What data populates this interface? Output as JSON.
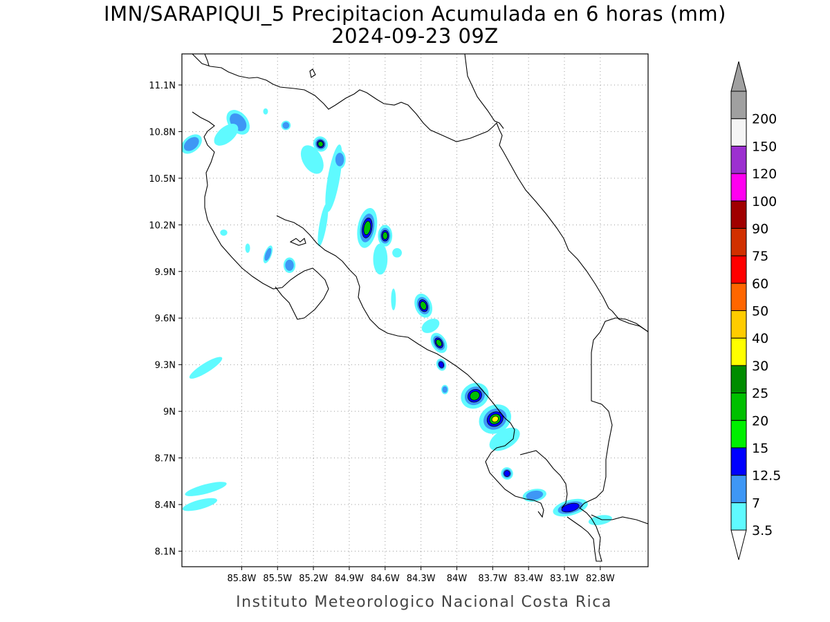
{
  "header": {
    "title_line1": "IMN/SARAPIQUI_5 Precipitacion Acumulada en 6 horas (mm)",
    "title_line2": "2024-09-23 09Z"
  },
  "footer": {
    "credit": "Instituto Meteorologico Nacional Costa Rica"
  },
  "map": {
    "lon_range": [
      -86.3,
      -82.4
    ],
    "lat_range": [
      8.0,
      11.3
    ],
    "lat_ticks": [
      {
        "value": 8.1,
        "label": "8.1N"
      },
      {
        "value": 8.4,
        "label": "8.4N"
      },
      {
        "value": 8.7,
        "label": "8.7N"
      },
      {
        "value": 9.0,
        "label": "9N"
      },
      {
        "value": 9.3,
        "label": "9.3N"
      },
      {
        "value": 9.6,
        "label": "9.6N"
      },
      {
        "value": 9.9,
        "label": "9.9N"
      },
      {
        "value": 10.2,
        "label": "10.2N"
      },
      {
        "value": 10.5,
        "label": "10.5N"
      },
      {
        "value": 10.8,
        "label": "10.8N"
      },
      {
        "value": 11.1,
        "label": "11.1N"
      }
    ],
    "lon_ticks": [
      {
        "value": -85.8,
        "label": "85.8W"
      },
      {
        "value": -85.5,
        "label": "85.5W"
      },
      {
        "value": -85.2,
        "label": "85.2W"
      },
      {
        "value": -84.9,
        "label": "84.9W"
      },
      {
        "value": -84.6,
        "label": "84.6W"
      },
      {
        "value": -84.3,
        "label": "84.3W"
      },
      {
        "value": -84.0,
        "label": "84W"
      },
      {
        "value": -83.7,
        "label": "83.7W"
      },
      {
        "value": -83.4,
        "label": "83.4W"
      },
      {
        "value": -83.1,
        "label": "83.1W"
      },
      {
        "value": -82.8,
        "label": "82.8W"
      }
    ],
    "gridlines": true
  },
  "legend": {
    "colors": [
      {
        "label": "3.5",
        "color": "#5ffaff"
      },
      {
        "label": "7",
        "color": "#3e97f5"
      },
      {
        "label": "12.5",
        "color": "#0000ff"
      },
      {
        "label": "15",
        "color": "#00f000"
      },
      {
        "label": "20",
        "color": "#00c000"
      },
      {
        "label": "25",
        "color": "#008c00"
      },
      {
        "label": "30",
        "color": "#ffff00"
      },
      {
        "label": "40",
        "color": "#ffcc00"
      },
      {
        "label": "50",
        "color": "#ff6600"
      },
      {
        "label": "60",
        "color": "#ff0000"
      },
      {
        "label": "75",
        "color": "#d13000"
      },
      {
        "label": "90",
        "color": "#a00000"
      },
      {
        "label": "100",
        "color": "#ff00f0"
      },
      {
        "label": "120",
        "color": "#9c30d0"
      },
      {
        "label": "150",
        "color": "#f5f5f5"
      },
      {
        "label": "200",
        "color": "#a0a0a0"
      }
    ]
  },
  "precip_cells": [
    {
      "lon": -85.83,
      "lat": 10.86,
      "rx": 0.08,
      "ry": 0.09,
      "rot": -40,
      "levels": 2
    },
    {
      "lon": -86.22,
      "lat": 10.72,
      "rx": 0.1,
      "ry": 0.05,
      "rot": -40,
      "levels": 2
    },
    {
      "lon": -85.93,
      "lat": 10.78,
      "rx": 0.12,
      "ry": 0.05,
      "rot": -40,
      "levels": 1
    },
    {
      "lon": -85.6,
      "lat": 10.93,
      "rx": 0.02,
      "ry": 0.02,
      "rot": 0,
      "levels": 1
    },
    {
      "lon": -85.43,
      "lat": 10.84,
      "rx": 0.04,
      "ry": 0.03,
      "rot": -20,
      "levels": 2
    },
    {
      "lon": -85.21,
      "lat": 10.62,
      "rx": 0.08,
      "ry": 0.1,
      "rot": -30,
      "levels": 1
    },
    {
      "lon": -85.14,
      "lat": 10.72,
      "rx": 0.06,
      "ry": 0.05,
      "rot": -30,
      "levels": 4
    },
    {
      "lon": -85.03,
      "lat": 10.5,
      "rx": 0.05,
      "ry": 0.22,
      "rot": 10,
      "levels": 1
    },
    {
      "lon": -84.98,
      "lat": 10.62,
      "rx": 0.05,
      "ry": 0.06,
      "rot": 0,
      "levels": 2
    },
    {
      "lon": -85.12,
      "lat": 10.2,
      "rx": 0.03,
      "ry": 0.14,
      "rot": 10,
      "levels": 1
    },
    {
      "lon": -85.58,
      "lat": 10.01,
      "rx": 0.03,
      "ry": 0.06,
      "rot": 20,
      "levels": 2
    },
    {
      "lon": -85.4,
      "lat": 9.94,
      "rx": 0.05,
      "ry": 0.05,
      "rot": 0,
      "levels": 2
    },
    {
      "lon": -85.75,
      "lat": 10.05,
      "rx": 0.02,
      "ry": 0.03,
      "rot": 0,
      "levels": 1
    },
    {
      "lon": -85.95,
      "lat": 10.15,
      "rx": 0.03,
      "ry": 0.02,
      "rot": 0,
      "levels": 1
    },
    {
      "lon": -84.75,
      "lat": 10.18,
      "rx": 0.08,
      "ry": 0.13,
      "rot": 10,
      "levels": 4
    },
    {
      "lon": -84.6,
      "lat": 10.13,
      "rx": 0.06,
      "ry": 0.07,
      "rot": 0,
      "levels": 4
    },
    {
      "lon": -84.64,
      "lat": 9.98,
      "rx": 0.06,
      "ry": 0.1,
      "rot": 0,
      "levels": 1
    },
    {
      "lon": -84.5,
      "lat": 10.02,
      "rx": 0.04,
      "ry": 0.03,
      "rot": 0,
      "levels": 1
    },
    {
      "lon": -84.53,
      "lat": 9.72,
      "rx": 0.02,
      "ry": 0.07,
      "rot": 0,
      "levels": 1
    },
    {
      "lon": -84.28,
      "lat": 9.68,
      "rx": 0.07,
      "ry": 0.08,
      "rot": -20,
      "levels": 4
    },
    {
      "lon": -84.22,
      "lat": 9.55,
      "rx": 0.08,
      "ry": 0.04,
      "rot": -30,
      "levels": 1
    },
    {
      "lon": -84.15,
      "lat": 9.44,
      "rx": 0.06,
      "ry": 0.07,
      "rot": -30,
      "levels": 4
    },
    {
      "lon": -84.13,
      "lat": 9.3,
      "rx": 0.04,
      "ry": 0.04,
      "rot": -20,
      "levels": 3
    },
    {
      "lon": -84.1,
      "lat": 9.14,
      "rx": 0.03,
      "ry": 0.03,
      "rot": 0,
      "levels": 2
    },
    {
      "lon": -83.85,
      "lat": 9.1,
      "rx": 0.12,
      "ry": 0.08,
      "rot": -30,
      "levels": 4
    },
    {
      "lon": -83.68,
      "lat": 8.95,
      "rx": 0.14,
      "ry": 0.09,
      "rot": -30,
      "levels": 5
    },
    {
      "lon": -83.6,
      "lat": 8.82,
      "rx": 0.14,
      "ry": 0.06,
      "rot": -30,
      "levels": 1
    },
    {
      "lon": -83.58,
      "lat": 8.6,
      "rx": 0.05,
      "ry": 0.04,
      "rot": -20,
      "levels": 3
    },
    {
      "lon": -83.35,
      "lat": 8.46,
      "rx": 0.1,
      "ry": 0.04,
      "rot": -10,
      "levels": 2
    },
    {
      "lon": -83.05,
      "lat": 8.38,
      "rx": 0.15,
      "ry": 0.05,
      "rot": -15,
      "levels": 3
    },
    {
      "lon": -82.8,
      "lat": 8.3,
      "rx": 0.1,
      "ry": 0.03,
      "rot": -10,
      "levels": 1
    },
    {
      "lon": -86.1,
      "lat": 9.28,
      "rx": 0.16,
      "ry": 0.03,
      "rot": -32,
      "levels": 1
    },
    {
      "lon": -86.1,
      "lat": 8.5,
      "rx": 0.18,
      "ry": 0.03,
      "rot": -15,
      "levels": 1
    },
    {
      "lon": -86.15,
      "lat": 8.4,
      "rx": 0.15,
      "ry": 0.03,
      "rot": -15,
      "levels": 1
    }
  ]
}
